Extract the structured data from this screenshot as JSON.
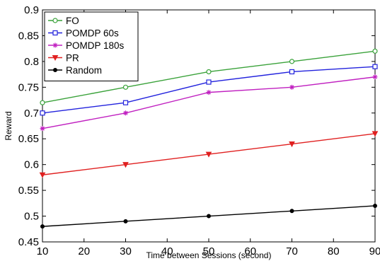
{
  "chart_data": {
    "type": "line",
    "xlabel": "Time between Sessions (second)",
    "ylabel": "Reward",
    "x": [
      10,
      30,
      50,
      70,
      90
    ],
    "xlim": [
      10,
      90
    ],
    "ylim": [
      0.45,
      0.9
    ],
    "xticks": [
      "10",
      "20",
      "30",
      "40",
      "50",
      "60",
      "70",
      "80",
      "90"
    ],
    "yticks": [
      "0.45",
      "0.5",
      "0.55",
      "0.6",
      "0.65",
      "0.7",
      "0.75",
      "0.8",
      "0.85",
      "0.9"
    ],
    "grid": false,
    "legend_position": "top-left",
    "series": [
      {
        "name": "FO",
        "values": [
          0.72,
          0.75,
          0.78,
          0.8,
          0.82
        ],
        "color": "#3aa23a",
        "marker": "circle"
      },
      {
        "name": "POMDP 60s",
        "values": [
          0.7,
          0.72,
          0.76,
          0.78,
          0.79
        ],
        "color": "#2222dd",
        "marker": "square"
      },
      {
        "name": "POMDP 180s",
        "values": [
          0.67,
          0.7,
          0.74,
          0.75,
          0.77
        ],
        "color": "#c020c0",
        "marker": "star"
      },
      {
        "name": "PR",
        "values": [
          0.58,
          0.6,
          0.62,
          0.64,
          0.66
        ],
        "color": "#e02020",
        "marker": "triangle-down"
      },
      {
        "name": "Random",
        "values": [
          0.48,
          0.49,
          0.5,
          0.51,
          0.52
        ],
        "color": "#000000",
        "marker": "dot"
      }
    ]
  }
}
